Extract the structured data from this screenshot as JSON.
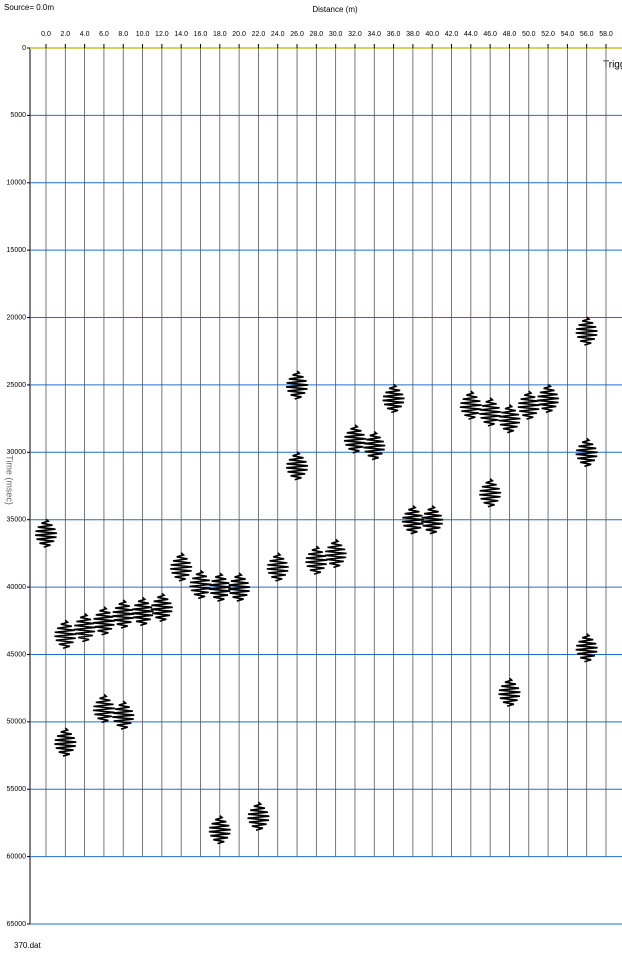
{
  "chart_data": {
    "type": "seismic",
    "source": "Source= 0.0m",
    "xlabel": "Distance (m)",
    "ylabel": "Time (msec)",
    "file": "370.dat",
    "trigger": "Trigge",
    "xlim": [
      0,
      58
    ],
    "xticks": [
      {
        "value": 0,
        "label": "0.0"
      },
      {
        "value": 2,
        "label": "2.0"
      },
      {
        "value": 4,
        "label": "4.0"
      },
      {
        "value": 6,
        "label": "6.0"
      },
      {
        "value": 8,
        "label": "8.0"
      },
      {
        "value": 10,
        "label": "10.0"
      },
      {
        "value": 12,
        "label": "12.0"
      },
      {
        "value": 14,
        "label": "14.0"
      },
      {
        "value": 16,
        "label": "16.0"
      },
      {
        "value": 18,
        "label": "18.0"
      },
      {
        "value": 20,
        "label": "20.0"
      },
      {
        "value": 22,
        "label": "22.0"
      },
      {
        "value": 24,
        "label": "24.0"
      },
      {
        "value": 26,
        "label": "26.0"
      },
      {
        "value": 28,
        "label": "28.0"
      },
      {
        "value": 30,
        "label": "30.0"
      },
      {
        "value": 32,
        "label": "32.0"
      },
      {
        "value": 34,
        "label": "34.0"
      },
      {
        "value": 36,
        "label": "36.0"
      },
      {
        "value": 38,
        "label": "38.0"
      },
      {
        "value": 40,
        "label": "40.0"
      },
      {
        "value": 42,
        "label": "42.0"
      },
      {
        "value": 44,
        "label": "44.0"
      },
      {
        "value": 46,
        "label": "46.0"
      },
      {
        "value": 48,
        "label": "48.0"
      },
      {
        "value": 50,
        "label": "50.0"
      },
      {
        "value": 52,
        "label": "52.0"
      },
      {
        "value": 54,
        "label": "54.0"
      },
      {
        "value": 56,
        "label": "56.0"
      },
      {
        "value": 58,
        "label": "58.0"
      }
    ],
    "ylim": [
      0,
      65000
    ],
    "yticks": [
      0,
      5000,
      10000,
      15000,
      20000,
      25000,
      30000,
      35000,
      40000,
      45000,
      50000,
      55000,
      60000,
      65000
    ],
    "grid": true,
    "grid_color": "#1f6fd0",
    "trace_color": "#555555",
    "color": "#000000",
    "x": [
      0,
      2,
      2,
      4,
      6,
      6,
      8,
      8,
      10,
      12,
      14,
      16,
      18,
      18,
      20,
      22,
      24,
      26,
      26,
      28,
      30,
      32,
      34,
      36,
      38,
      40,
      44,
      46,
      46,
      48,
      48,
      50,
      52,
      56,
      56,
      56
    ],
    "values": [
      36000,
      43500,
      51500,
      43000,
      42500,
      49000,
      42000,
      49500,
      41800,
      41500,
      38500,
      39800,
      40000,
      58000,
      40000,
      57000,
      38500,
      31000,
      25000,
      38000,
      37500,
      29000,
      29500,
      26000,
      35000,
      35000,
      26500,
      33000,
      27000,
      27500,
      47800,
      26500,
      26000,
      21000,
      30000,
      44500
    ]
  }
}
